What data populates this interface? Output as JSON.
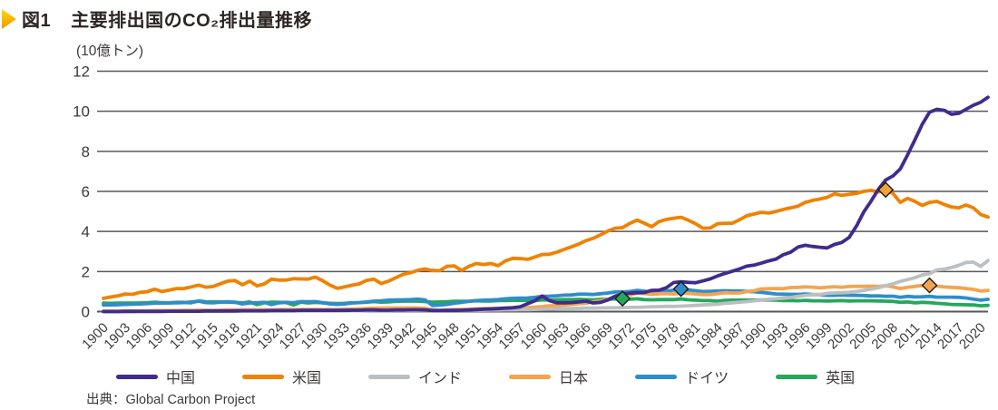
{
  "header": {
    "figure_label": "図1",
    "title": "主要排出国のCO₂排出量推移",
    "arrow_color_top": "#FFD800",
    "arrow_color_bottom": "#F29600"
  },
  "source": "出典：Global Carbon Project",
  "chart_data": {
    "type": "line",
    "title": "主要排出国のCO₂排出量推移",
    "unit_label": "(10億トン)",
    "ylim": [
      0,
      12
    ],
    "yticks": [
      0,
      2,
      4,
      6,
      8,
      10,
      12
    ],
    "x_start": 1900,
    "x_end": 2021,
    "xticks": [
      1900,
      1903,
      1906,
      1909,
      1912,
      1915,
      1918,
      1921,
      1924,
      1927,
      1930,
      1933,
      1936,
      1939,
      1942,
      1945,
      1948,
      1951,
      1954,
      1957,
      1960,
      1963,
      1966,
      1969,
      1972,
      1975,
      1978,
      1981,
      1984,
      1987,
      1990,
      1993,
      1996,
      1999,
      2002,
      2005,
      2008,
      2011,
      2014,
      2017,
      2020
    ],
    "grid": "horizontal",
    "grid_color": "#595757",
    "axis_text_color": "#3E3A39",
    "legend_position": "bottom",
    "series": [
      {
        "id": "china",
        "name": "中国",
        "color": "#402B8E",
        "values": [
          0.0,
          0.0,
          0.0,
          0.01,
          0.01,
          0.01,
          0.01,
          0.01,
          0.01,
          0.02,
          0.02,
          0.02,
          0.02,
          0.02,
          0.03,
          0.03,
          0.03,
          0.03,
          0.03,
          0.04,
          0.04,
          0.04,
          0.04,
          0.05,
          0.05,
          0.05,
          0.05,
          0.06,
          0.06,
          0.06,
          0.06,
          0.06,
          0.06,
          0.06,
          0.07,
          0.07,
          0.08,
          0.08,
          0.07,
          0.07,
          0.08,
          0.08,
          0.09,
          0.09,
          0.08,
          0.05,
          0.05,
          0.06,
          0.06,
          0.07,
          0.08,
          0.1,
          0.12,
          0.13,
          0.15,
          0.17,
          0.19,
          0.24,
          0.39,
          0.54,
          0.78,
          0.55,
          0.44,
          0.44,
          0.45,
          0.48,
          0.52,
          0.43,
          0.46,
          0.58,
          0.77,
          0.87,
          0.92,
          0.94,
          0.95,
          1.06,
          1.07,
          1.19,
          1.45,
          1.49,
          1.46,
          1.44,
          1.53,
          1.63,
          1.78,
          1.9,
          2.01,
          2.13,
          2.27,
          2.32,
          2.42,
          2.53,
          2.62,
          2.84,
          2.96,
          3.22,
          3.31,
          3.25,
          3.21,
          3.18,
          3.35,
          3.45,
          3.7,
          4.27,
          4.97,
          5.51,
          6.1,
          6.57,
          6.77,
          7.12,
          7.83,
          8.57,
          9.35,
          9.95,
          10.1,
          10.05,
          9.85,
          9.9,
          10.1,
          10.3,
          10.45,
          10.7
        ]
      },
      {
        "id": "usa",
        "name": "米国",
        "color": "#EF8200",
        "values": [
          0.66,
          0.73,
          0.79,
          0.88,
          0.86,
          0.96,
          0.99,
          1.12,
          1.0,
          1.07,
          1.15,
          1.15,
          1.23,
          1.32,
          1.22,
          1.25,
          1.39,
          1.52,
          1.55,
          1.34,
          1.52,
          1.28,
          1.38,
          1.62,
          1.57,
          1.57,
          1.64,
          1.63,
          1.62,
          1.72,
          1.54,
          1.32,
          1.16,
          1.23,
          1.32,
          1.38,
          1.56,
          1.62,
          1.4,
          1.52,
          1.69,
          1.86,
          1.94,
          2.06,
          2.13,
          2.05,
          2.04,
          2.26,
          2.28,
          2.05,
          2.26,
          2.4,
          2.35,
          2.4,
          2.29,
          2.53,
          2.66,
          2.65,
          2.61,
          2.72,
          2.85,
          2.86,
          2.96,
          3.1,
          3.23,
          3.37,
          3.54,
          3.66,
          3.83,
          4.02,
          4.16,
          4.19,
          4.4,
          4.57,
          4.41,
          4.24,
          4.49,
          4.6,
          4.66,
          4.71,
          4.56,
          4.39,
          4.16,
          4.17,
          4.39,
          4.41,
          4.41,
          4.58,
          4.78,
          4.87,
          4.96,
          4.92,
          5.0,
          5.1,
          5.18,
          5.26,
          5.45,
          5.55,
          5.62,
          5.7,
          5.88,
          5.8,
          5.85,
          5.9,
          6.0,
          6.05,
          5.97,
          6.08,
          5.9,
          5.45,
          5.65,
          5.5,
          5.3,
          5.45,
          5.5,
          5.35,
          5.22,
          5.18,
          5.32,
          5.18,
          4.85,
          4.72
        ]
      },
      {
        "id": "india",
        "name": "インド",
        "color": "#BBBFC2",
        "values": [
          0.01,
          0.01,
          0.01,
          0.01,
          0.01,
          0.02,
          0.02,
          0.02,
          0.02,
          0.02,
          0.02,
          0.02,
          0.02,
          0.02,
          0.02,
          0.02,
          0.02,
          0.03,
          0.03,
          0.03,
          0.03,
          0.03,
          0.03,
          0.03,
          0.03,
          0.03,
          0.03,
          0.04,
          0.04,
          0.04,
          0.04,
          0.04,
          0.04,
          0.04,
          0.04,
          0.04,
          0.05,
          0.05,
          0.05,
          0.05,
          0.06,
          0.06,
          0.06,
          0.06,
          0.06,
          0.06,
          0.06,
          0.07,
          0.07,
          0.07,
          0.07,
          0.07,
          0.07,
          0.08,
          0.08,
          0.09,
          0.09,
          0.1,
          0.1,
          0.11,
          0.12,
          0.13,
          0.14,
          0.15,
          0.15,
          0.16,
          0.17,
          0.17,
          0.18,
          0.19,
          0.19,
          0.2,
          0.21,
          0.21,
          0.22,
          0.24,
          0.25,
          0.26,
          0.26,
          0.27,
          0.29,
          0.31,
          0.33,
          0.35,
          0.37,
          0.41,
          0.44,
          0.47,
          0.5,
          0.54,
          0.58,
          0.61,
          0.64,
          0.67,
          0.7,
          0.76,
          0.81,
          0.84,
          0.85,
          0.91,
          0.93,
          0.94,
          0.96,
          1.0,
          1.06,
          1.12,
          1.19,
          1.29,
          1.38,
          1.51,
          1.6,
          1.69,
          1.83,
          1.89,
          2.08,
          2.12,
          2.2,
          2.31,
          2.45,
          2.47,
          2.26,
          2.55
        ]
      },
      {
        "id": "japan",
        "name": "日本",
        "color": "#F4A44F",
        "values": [
          0.03,
          0.03,
          0.03,
          0.04,
          0.04,
          0.04,
          0.04,
          0.05,
          0.05,
          0.05,
          0.05,
          0.06,
          0.06,
          0.07,
          0.06,
          0.06,
          0.07,
          0.08,
          0.09,
          0.09,
          0.09,
          0.09,
          0.09,
          0.09,
          0.1,
          0.1,
          0.1,
          0.1,
          0.11,
          0.11,
          0.1,
          0.1,
          0.1,
          0.12,
          0.13,
          0.14,
          0.15,
          0.17,
          0.17,
          0.18,
          0.18,
          0.18,
          0.18,
          0.18,
          0.16,
          0.1,
          0.07,
          0.09,
          0.1,
          0.11,
          0.12,
          0.14,
          0.15,
          0.16,
          0.16,
          0.17,
          0.19,
          0.21,
          0.2,
          0.22,
          0.25,
          0.29,
          0.3,
          0.33,
          0.36,
          0.39,
          0.42,
          0.49,
          0.54,
          0.61,
          0.76,
          0.79,
          0.83,
          0.92,
          0.9,
          0.86,
          0.89,
          0.9,
          0.88,
          0.92,
          0.91,
          0.88,
          0.85,
          0.85,
          0.89,
          0.94,
          0.93,
          0.93,
          1.0,
          1.04,
          1.13,
          1.14,
          1.15,
          1.14,
          1.2,
          1.21,
          1.23,
          1.22,
          1.18,
          1.22,
          1.24,
          1.22,
          1.25,
          1.26,
          1.26,
          1.27,
          1.25,
          1.29,
          1.23,
          1.15,
          1.21,
          1.26,
          1.3,
          1.31,
          1.27,
          1.23,
          1.21,
          1.19,
          1.15,
          1.11,
          1.03,
          1.06
        ]
      },
      {
        "id": "germany",
        "name": "ドイツ",
        "color": "#2F8DCB",
        "values": [
          0.33,
          0.33,
          0.34,
          0.36,
          0.37,
          0.38,
          0.4,
          0.42,
          0.42,
          0.43,
          0.44,
          0.45,
          0.48,
          0.52,
          0.45,
          0.44,
          0.47,
          0.49,
          0.47,
          0.38,
          0.43,
          0.44,
          0.46,
          0.35,
          0.44,
          0.46,
          0.44,
          0.5,
          0.49,
          0.5,
          0.44,
          0.38,
          0.36,
          0.38,
          0.43,
          0.45,
          0.48,
          0.52,
          0.54,
          0.57,
          0.58,
          0.59,
          0.6,
          0.62,
          0.58,
          0.31,
          0.32,
          0.36,
          0.42,
          0.46,
          0.51,
          0.55,
          0.57,
          0.58,
          0.6,
          0.64,
          0.66,
          0.67,
          0.68,
          0.71,
          0.76,
          0.77,
          0.79,
          0.82,
          0.83,
          0.87,
          0.87,
          0.85,
          0.89,
          0.93,
          0.98,
          0.98,
          1.0,
          1.06,
          1.02,
          0.97,
          1.04,
          1.02,
          1.07,
          1.13,
          1.08,
          1.04,
          1.0,
          1.01,
          1.03,
          1.04,
          1.03,
          1.03,
          1.01,
          0.99,
          0.96,
          0.92,
          0.88,
          0.87,
          0.86,
          0.86,
          0.88,
          0.85,
          0.84,
          0.81,
          0.81,
          0.83,
          0.81,
          0.81,
          0.8,
          0.78,
          0.79,
          0.76,
          0.77,
          0.71,
          0.76,
          0.73,
          0.74,
          0.76,
          0.72,
          0.72,
          0.72,
          0.71,
          0.68,
          0.62,
          0.57,
          0.61
        ]
      },
      {
        "id": "uk",
        "name": "英国",
        "color": "#25A75C",
        "values": [
          0.42,
          0.41,
          0.42,
          0.42,
          0.42,
          0.43,
          0.44,
          0.47,
          0.44,
          0.44,
          0.46,
          0.46,
          0.44,
          0.53,
          0.49,
          0.48,
          0.48,
          0.47,
          0.46,
          0.43,
          0.48,
          0.35,
          0.44,
          0.47,
          0.46,
          0.45,
          0.33,
          0.47,
          0.43,
          0.46,
          0.44,
          0.41,
          0.4,
          0.41,
          0.44,
          0.45,
          0.47,
          0.5,
          0.47,
          0.48,
          0.51,
          0.52,
          0.52,
          0.52,
          0.5,
          0.47,
          0.48,
          0.49,
          0.51,
          0.51,
          0.52,
          0.54,
          0.53,
          0.53,
          0.55,
          0.55,
          0.56,
          0.56,
          0.55,
          0.55,
          0.58,
          0.58,
          0.59,
          0.6,
          0.6,
          0.61,
          0.6,
          0.59,
          0.61,
          0.62,
          0.63,
          0.65,
          0.62,
          0.64,
          0.6,
          0.59,
          0.6,
          0.6,
          0.6,
          0.63,
          0.59,
          0.57,
          0.55,
          0.55,
          0.52,
          0.56,
          0.57,
          0.57,
          0.57,
          0.57,
          0.58,
          0.58,
          0.57,
          0.55,
          0.55,
          0.54,
          0.56,
          0.54,
          0.54,
          0.53,
          0.54,
          0.55,
          0.53,
          0.54,
          0.54,
          0.54,
          0.53,
          0.52,
          0.51,
          0.46,
          0.48,
          0.44,
          0.46,
          0.45,
          0.41,
          0.39,
          0.36,
          0.35,
          0.34,
          0.33,
          0.29,
          0.31
        ]
      }
    ],
    "markers": [
      {
        "series_id": "uk",
        "year": 1971,
        "value": 0.65,
        "fill": "#25A75C"
      },
      {
        "series_id": "germany",
        "year": 1979,
        "value": 1.13,
        "fill": "#2F8DCB"
      },
      {
        "series_id": "usa",
        "year": 2007,
        "value": 6.08,
        "fill": "#F4A236"
      },
      {
        "series_id": "japan",
        "year": 2013,
        "value": 1.31,
        "fill": "#F4A44F"
      }
    ]
  },
  "legend": {
    "items": [
      {
        "id": "china",
        "label": "中国",
        "color": "#402B8E"
      },
      {
        "id": "usa",
        "label": "米国",
        "color": "#EF8200"
      },
      {
        "id": "india",
        "label": "インド",
        "color": "#BBBFC2"
      },
      {
        "id": "japan",
        "label": "日本",
        "color": "#F4A44F"
      },
      {
        "id": "germany",
        "label": "ドイツ",
        "color": "#2F8DCB"
      },
      {
        "id": "uk",
        "label": "英国",
        "color": "#25A75C"
      }
    ]
  }
}
